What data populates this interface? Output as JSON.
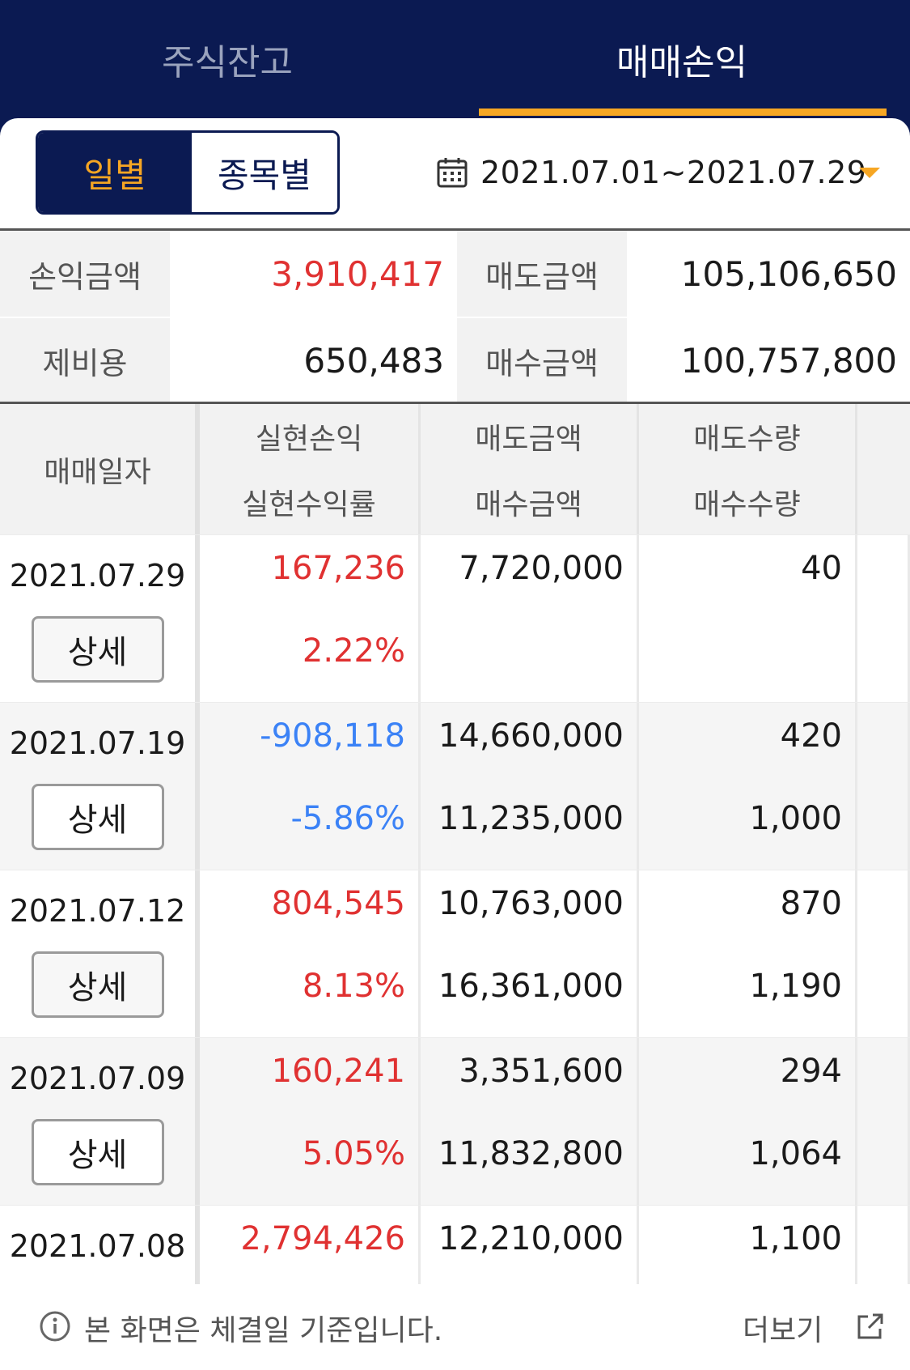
{
  "tabs": [
    {
      "label": "주식잔고",
      "active": false
    },
    {
      "label": "매매손익",
      "active": true
    }
  ],
  "accent_color": "#f6a623",
  "brand_color": "#0b1a52",
  "segment": {
    "daily": "일별",
    "by_stock": "종목별",
    "selected": "daily"
  },
  "date_range": {
    "icon": "calendar-icon",
    "text": "2021.07.01~2021.07.29"
  },
  "summary": {
    "profit_label": "손익금액",
    "profit_value": "3,910,417",
    "sell_label": "매도금액",
    "sell_value": "105,106,650",
    "fee_label": "제비용",
    "fee_value": "650,483",
    "buy_label": "매수금액",
    "buy_value": "100,757,800"
  },
  "table": {
    "headers": {
      "date": "매매일자",
      "realized_profit": "실현손익",
      "realized_rate": "실현수익률",
      "sell_amount": "매도금액",
      "buy_amount": "매수금액",
      "sell_qty": "매도수량",
      "buy_qty": "매수수량"
    },
    "detail_label": "상세",
    "rows": [
      {
        "date": "2021.07.29",
        "profit": "167,236",
        "rate": "2.22%",
        "sell_amount": "7,720,000",
        "buy_amount": "",
        "sell_qty": "40",
        "buy_qty": "",
        "sign": "positive"
      },
      {
        "date": "2021.07.19",
        "profit": "-908,118",
        "rate": "-5.86%",
        "sell_amount": "14,660,000",
        "buy_amount": "11,235,000",
        "sell_qty": "420",
        "buy_qty": "1,000",
        "sign": "negative"
      },
      {
        "date": "2021.07.12",
        "profit": "804,545",
        "rate": "8.13%",
        "sell_amount": "10,763,000",
        "buy_amount": "16,361,000",
        "sell_qty": "870",
        "buy_qty": "1,190",
        "sign": "positive"
      },
      {
        "date": "2021.07.09",
        "profit": "160,241",
        "rate": "5.05%",
        "sell_amount": "3,351,600",
        "buy_amount": "11,832,800",
        "sell_qty": "294",
        "buy_qty": "1,064",
        "sign": "positive"
      },
      {
        "date": "2021.07.08",
        "profit": "2,794,426",
        "rate": "",
        "sell_amount": "12,210,000",
        "buy_amount": "",
        "sell_qty": "1,100",
        "buy_qty": "",
        "sign": "positive"
      }
    ]
  },
  "footer": {
    "notice": "본 화면은 체결일 기준입니다.",
    "more": "더보기"
  }
}
